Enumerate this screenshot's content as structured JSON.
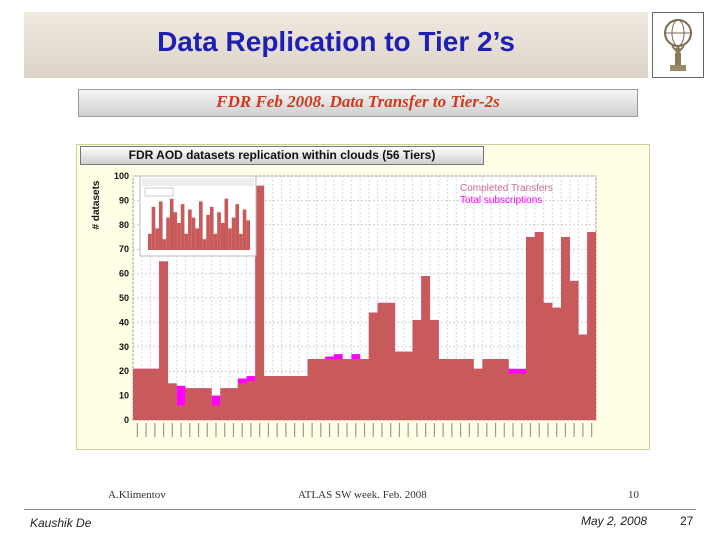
{
  "slide": {
    "title": "Data Replication to Tier 2’s",
    "subtitle": "FDR Feb 2008. Data Transfer to Tier-2s",
    "author": "Kaushik De",
    "date": "May 2, 2008",
    "page": "27"
  },
  "embedded_footer": {
    "left": "A.Klimentov",
    "middle": "ATLAS SW week. Feb. 2008",
    "right": "10"
  },
  "colors": {
    "title": "#1f1fb4",
    "subtitle": "#d03a1e",
    "completed": "#c85a5a",
    "total": "#ff00ff"
  },
  "chart_data": {
    "type": "bar",
    "title": "FDR AOD datasets replication within clouds (56 Tiers)",
    "ylabel": "# datasets",
    "ylim": [
      0,
      100
    ],
    "yticks": [
      0,
      10,
      20,
      30,
      40,
      50,
      60,
      70,
      80,
      90,
      100
    ],
    "grid": true,
    "legend_position": "top-right",
    "series": [
      {
        "name": "Completed Transfers",
        "values": [
          21,
          21,
          21,
          65,
          15,
          6,
          13,
          13,
          13,
          6,
          13,
          13,
          15,
          16,
          96,
          18,
          18,
          18,
          18,
          18,
          25,
          25,
          25,
          25,
          25,
          25,
          25,
          44,
          48,
          48,
          28,
          28,
          41,
          59,
          41,
          25,
          25,
          25,
          25,
          21,
          25,
          25,
          25,
          19,
          19,
          75,
          77,
          48,
          46,
          75,
          57,
          35,
          77
        ]
      },
      {
        "name": "Total subscriptions",
        "values": [
          21,
          21,
          21,
          65,
          15,
          14,
          13,
          13,
          13,
          10,
          13,
          13,
          17,
          18,
          96,
          18,
          18,
          18,
          18,
          18,
          25,
          25,
          26,
          27,
          25,
          27,
          25,
          44,
          48,
          48,
          28,
          28,
          41,
          59,
          41,
          25,
          25,
          25,
          25,
          21,
          25,
          25,
          25,
          21,
          21,
          75,
          77,
          48,
          46,
          75,
          57,
          35,
          77
        ]
      }
    ]
  }
}
